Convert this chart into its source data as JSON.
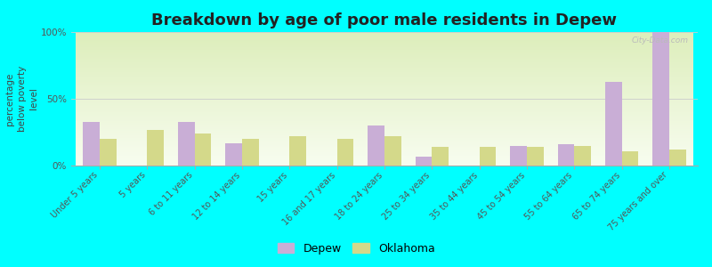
{
  "title": "Breakdown by age of poor male residents in Depew",
  "ylabel": "percentage\nbelow poverty\nlevel",
  "categories": [
    "Under 5 years",
    "5 years",
    "6 to 11 years",
    "12 to 14 years",
    "15 years",
    "16 and 17 years",
    "18 to 24 years",
    "25 to 34 years",
    "35 to 44 years",
    "45 to 54 years",
    "55 to 64 years",
    "65 to 74 years",
    "75 years and over"
  ],
  "depew_values": [
    33,
    0,
    33,
    17,
    0,
    0,
    30,
    7,
    0,
    15,
    16,
    63,
    100
  ],
  "oklahoma_values": [
    20,
    27,
    24,
    20,
    22,
    20,
    22,
    14,
    14,
    14,
    15,
    11,
    12
  ],
  "depew_color": "#c9aed6",
  "oklahoma_color": "#d4d98a",
  "ylim": [
    0,
    100
  ],
  "yticks": [
    0,
    50,
    100
  ],
  "ytick_labels": [
    "0%",
    "50%",
    "100%"
  ],
  "bar_width": 0.35,
  "title_fontsize": 13,
  "axis_label_fontsize": 7.5,
  "tick_label_fontsize": 7,
  "legend_fontsize": 9,
  "watermark_text": "City-Data.com",
  "bgcolor": "#00ffff",
  "grad_top": "#ddeebb",
  "grad_bottom": "#f8fdf0"
}
